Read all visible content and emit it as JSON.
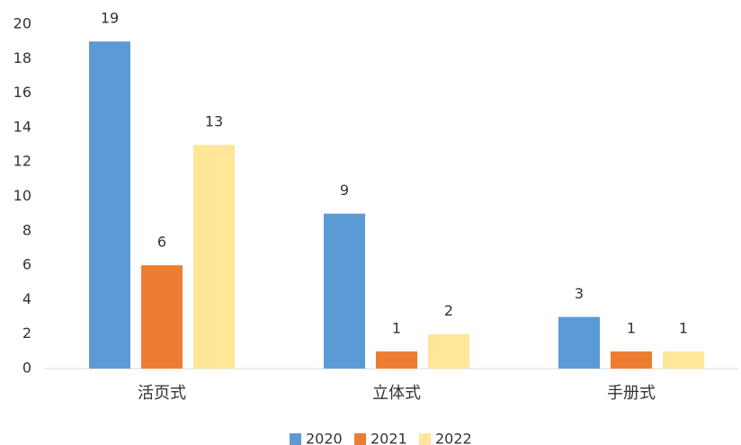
{
  "chart_data": {
    "type": "bar",
    "categories": [
      "活页式",
      "立体式",
      "手册式"
    ],
    "series": [
      {
        "name": "2020",
        "color": "#5b9bd5",
        "values": [
          19,
          9,
          3
        ]
      },
      {
        "name": "2021",
        "color": "#ed7d31",
        "values": [
          6,
          1,
          1
        ]
      },
      {
        "name": "2022",
        "color": "#ffe699",
        "values": [
          13,
          2,
          1
        ]
      }
    ],
    "ylim": [
      0,
      20
    ],
    "yticks": [
      0,
      2,
      4,
      6,
      8,
      10,
      12,
      14,
      16,
      18,
      20
    ],
    "grid": false,
    "legend": "bottom"
  }
}
